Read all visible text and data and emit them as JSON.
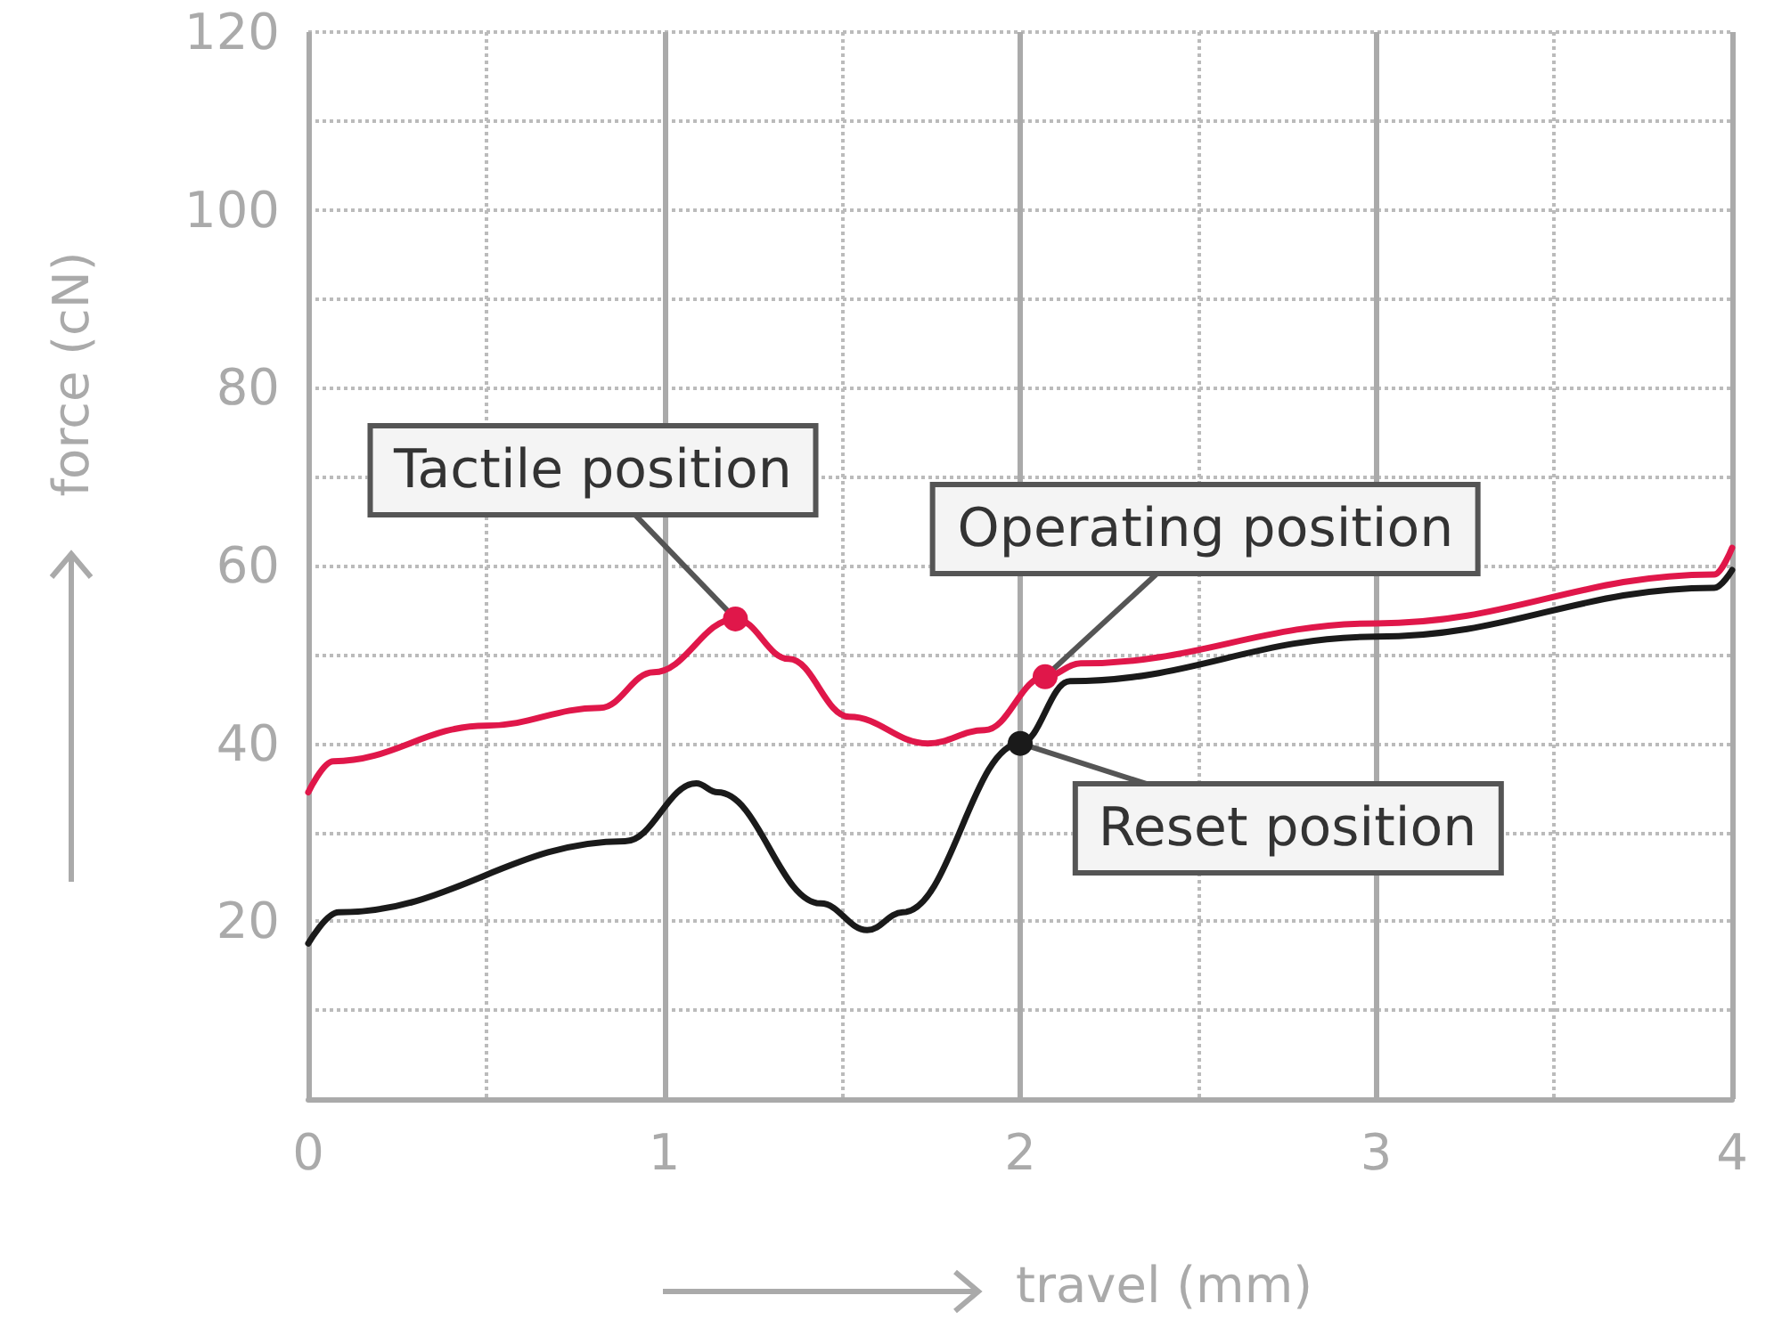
{
  "chart_data": {
    "type": "line",
    "xlabel": "travel (mm)",
    "ylabel": "force (cN)",
    "xlim": [
      0,
      4
    ],
    "xticks": [
      0,
      1,
      2,
      3,
      4
    ],
    "ylim": [
      0,
      120
    ],
    "yticks": [
      20,
      40,
      60,
      80,
      100,
      120
    ],
    "grid": true,
    "marker": "none",
    "line_style": "solid",
    "series": [
      {
        "color": "#e0174a",
        "x": [
          0,
          0.07,
          0.5,
          0.82,
          0.97,
          1.2,
          1.35,
          1.52,
          1.74,
          1.9,
          2.07,
          2.17,
          3.0,
          3.95,
          4
        ],
        "values": [
          34.5,
          38,
          42,
          44,
          48,
          54,
          49.5,
          43,
          40,
          41.5,
          47.5,
          49,
          53.5,
          59,
          62
        ]
      },
      {
        "color": "#1a1a1a",
        "x": [
          0,
          0.085,
          0.89,
          1.09,
          1.15,
          1.44,
          1.57,
          1.67,
          2.0,
          2.14,
          3.0,
          3.95,
          4
        ],
        "values": [
          17.5,
          21,
          29,
          35.5,
          34.5,
          22,
          19,
          21,
          40,
          47,
          52,
          57.5,
          59.5
        ]
      }
    ],
    "annotations": [
      {
        "text": "Tactile position",
        "x": 1.2,
        "y": 54
      },
      {
        "text": "Operating position",
        "x": 2.07,
        "y": 47.5
      },
      {
        "text": "Reset position",
        "x": 2.0,
        "y": 40
      }
    ]
  }
}
